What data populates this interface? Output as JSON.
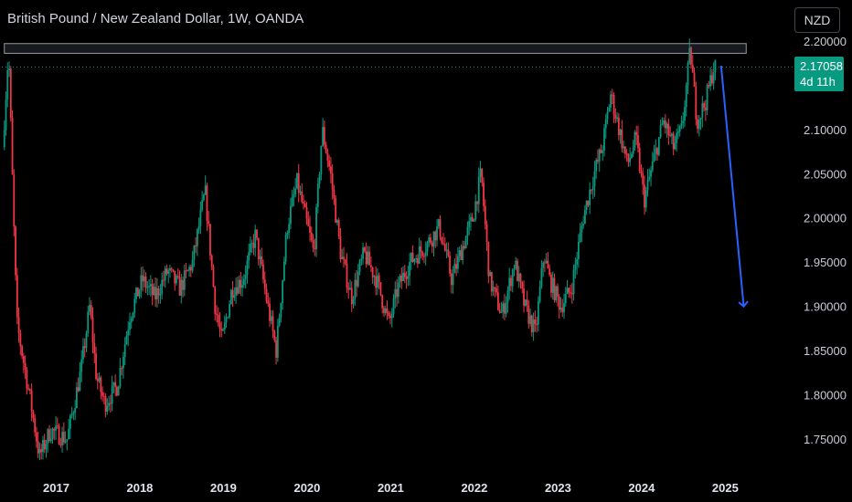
{
  "header": {
    "title": "British Pound / New Zealand Dollar, 1W, OANDA"
  },
  "currency": "NZD",
  "last_price": {
    "value": "2.17058",
    "countdown": "4d 11h",
    "color": "#089981"
  },
  "colors": {
    "up": "#089981",
    "down": "#f23645",
    "arrow": "#2962ff",
    "zone_fill": "#2a2e39",
    "zone_stroke": "#9598a1"
  },
  "chart_data": {
    "type": "candlestick",
    "title": "British Pound / New Zealand Dollar, 1W, OANDA",
    "y_axis_ticks": [
      "2.20000",
      "2.10000",
      "2.05000",
      "2.00000",
      "1.95000",
      "1.90000",
      "1.85000",
      "1.80000",
      "1.75000"
    ],
    "x_axis_ticks": [
      "2017",
      "2018",
      "2019",
      "2020",
      "2021",
      "2022",
      "2023",
      "2024",
      "2025"
    ],
    "ylim": [
      1.715,
      2.205
    ],
    "xlim": [
      2016.35,
      2025.75
    ],
    "grid": false,
    "resistance_zone": {
      "y_low": 2.186,
      "y_high": 2.197,
      "x_start": 2016.38,
      "x_end": 2025.25
    },
    "current_price_line": 2.17058,
    "projection_arrow": {
      "from": {
        "x": 2024.95,
        "y": 2.172
      },
      "to": {
        "x": 2025.22,
        "y": 1.9
      }
    },
    "price_path": [
      {
        "x": 2016.38,
        "y": 2.08
      },
      {
        "x": 2016.45,
        "y": 2.19
      },
      {
        "x": 2016.5,
        "y": 2.03
      },
      {
        "x": 2016.55,
        "y": 1.88
      },
      {
        "x": 2016.7,
        "y": 1.8
      },
      {
        "x": 2016.82,
        "y": 1.73
      },
      {
        "x": 2016.95,
        "y": 1.76
      },
      {
        "x": 2017.15,
        "y": 1.75
      },
      {
        "x": 2017.32,
        "y": 1.83
      },
      {
        "x": 2017.42,
        "y": 1.9
      },
      {
        "x": 2017.5,
        "y": 1.82
      },
      {
        "x": 2017.6,
        "y": 1.79
      },
      {
        "x": 2017.75,
        "y": 1.81
      },
      {
        "x": 2017.9,
        "y": 1.89
      },
      {
        "x": 2018.05,
        "y": 1.93
      },
      {
        "x": 2018.2,
        "y": 1.91
      },
      {
        "x": 2018.35,
        "y": 1.94
      },
      {
        "x": 2018.5,
        "y": 1.92
      },
      {
        "x": 2018.65,
        "y": 1.95
      },
      {
        "x": 2018.8,
        "y": 2.03
      },
      {
        "x": 2018.92,
        "y": 1.9
      },
      {
        "x": 2019.0,
        "y": 1.86
      },
      {
        "x": 2019.12,
        "y": 1.92
      },
      {
        "x": 2019.25,
        "y": 1.93
      },
      {
        "x": 2019.4,
        "y": 1.98
      },
      {
        "x": 2019.55,
        "y": 1.9
      },
      {
        "x": 2019.65,
        "y": 1.85
      },
      {
        "x": 2019.78,
        "y": 1.99
      },
      {
        "x": 2019.9,
        "y": 2.04
      },
      {
        "x": 2020.0,
        "y": 2.0
      },
      {
        "x": 2020.1,
        "y": 1.96
      },
      {
        "x": 2020.2,
        "y": 2.1
      },
      {
        "x": 2020.3,
        "y": 2.05
      },
      {
        "x": 2020.42,
        "y": 1.96
      },
      {
        "x": 2020.55,
        "y": 1.91
      },
      {
        "x": 2020.7,
        "y": 1.96
      },
      {
        "x": 2020.85,
        "y": 1.93
      },
      {
        "x": 2021.0,
        "y": 1.88
      },
      {
        "x": 2021.1,
        "y": 1.92
      },
      {
        "x": 2021.25,
        "y": 1.95
      },
      {
        "x": 2021.45,
        "y": 1.97
      },
      {
        "x": 2021.6,
        "y": 1.99
      },
      {
        "x": 2021.75,
        "y": 1.93
      },
      {
        "x": 2021.85,
        "y": 1.96
      },
      {
        "x": 2022.0,
        "y": 2.0
      },
      {
        "x": 2022.1,
        "y": 2.05
      },
      {
        "x": 2022.2,
        "y": 1.93
      },
      {
        "x": 2022.35,
        "y": 1.89
      },
      {
        "x": 2022.5,
        "y": 1.95
      },
      {
        "x": 2022.62,
        "y": 1.9
      },
      {
        "x": 2022.75,
        "y": 1.87
      },
      {
        "x": 2022.85,
        "y": 1.96
      },
      {
        "x": 2022.92,
        "y": 1.93
      },
      {
        "x": 2023.05,
        "y": 1.9
      },
      {
        "x": 2023.18,
        "y": 1.92
      },
      {
        "x": 2023.32,
        "y": 2.0
      },
      {
        "x": 2023.45,
        "y": 2.05
      },
      {
        "x": 2023.55,
        "y": 2.08
      },
      {
        "x": 2023.65,
        "y": 2.14
      },
      {
        "x": 2023.75,
        "y": 2.1
      },
      {
        "x": 2023.85,
        "y": 2.06
      },
      {
        "x": 2023.95,
        "y": 2.09
      },
      {
        "x": 2024.05,
        "y": 2.02
      },
      {
        "x": 2024.15,
        "y": 2.06
      },
      {
        "x": 2024.28,
        "y": 2.11
      },
      {
        "x": 2024.4,
        "y": 2.08
      },
      {
        "x": 2024.5,
        "y": 2.1
      },
      {
        "x": 2024.6,
        "y": 2.19
      },
      {
        "x": 2024.68,
        "y": 2.11
      },
      {
        "x": 2024.78,
        "y": 2.13
      },
      {
        "x": 2024.88,
        "y": 2.17
      }
    ]
  },
  "axis": {
    "y": [
      {
        "value": 2.2,
        "label": "2.20000"
      },
      {
        "value": 2.1,
        "label": "2.10000"
      },
      {
        "value": 2.05,
        "label": "2.05000"
      },
      {
        "value": 2.0,
        "label": "2.00000"
      },
      {
        "value": 1.95,
        "label": "1.95000"
      },
      {
        "value": 1.9,
        "label": "1.90000"
      },
      {
        "value": 1.85,
        "label": "1.85000"
      },
      {
        "value": 1.8,
        "label": "1.80000"
      },
      {
        "value": 1.75,
        "label": "1.75000"
      }
    ],
    "x": [
      {
        "value": 2017,
        "label": "2017"
      },
      {
        "value": 2018,
        "label": "2018"
      },
      {
        "value": 2019,
        "label": "2019"
      },
      {
        "value": 2020,
        "label": "2020"
      },
      {
        "value": 2021,
        "label": "2021"
      },
      {
        "value": 2022,
        "label": "2022"
      },
      {
        "value": 2023,
        "label": "2023"
      },
      {
        "value": 2024,
        "label": "2024"
      },
      {
        "value": 2025,
        "label": "2025"
      }
    ]
  }
}
